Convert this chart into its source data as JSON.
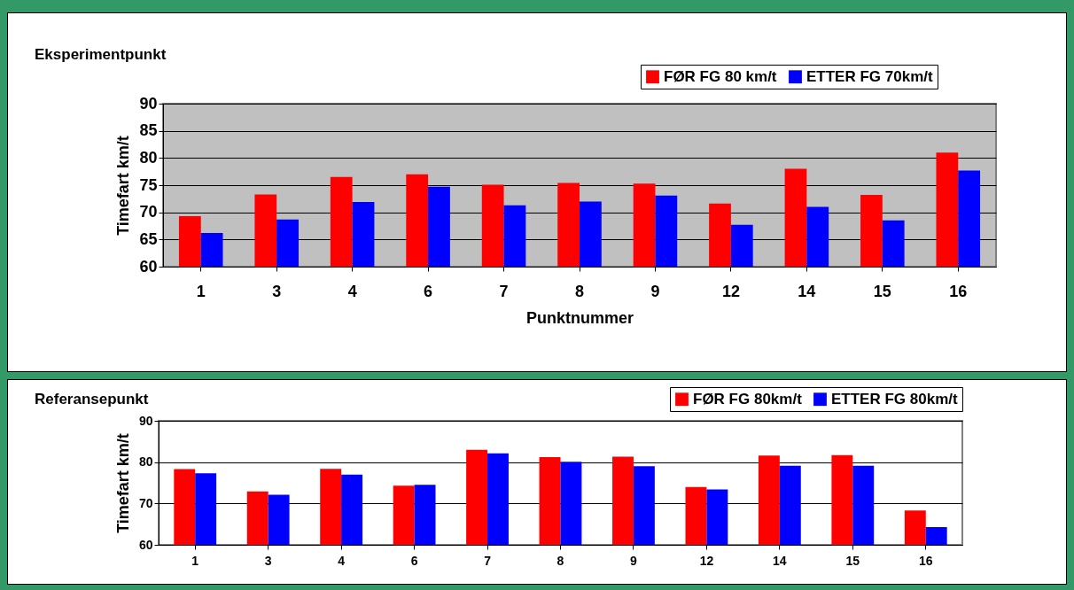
{
  "chart_data": [
    {
      "type": "bar",
      "title": "Eksperimentpunkt",
      "xlabel": "Punktnummer",
      "ylabel": "Timefart km/t",
      "categories": [
        "1",
        "3",
        "4",
        "6",
        "7",
        "8",
        "9",
        "12",
        "14",
        "15",
        "16"
      ],
      "series": [
        {
          "name": "FØR FG 80 km/t",
          "color": "#ff0000",
          "values": [
            69.3,
            73.3,
            76.5,
            77,
            75.1,
            75.4,
            75.3,
            71.6,
            78,
            73.2,
            81
          ]
        },
        {
          "name": "ETTER FG 70km/t",
          "color": "#0000ff",
          "values": [
            66.2,
            68.7,
            71.9,
            74.7,
            71.3,
            72,
            73.1,
            67.7,
            71,
            68.5,
            77.7
          ]
        }
      ],
      "ylim": [
        60,
        90
      ],
      "yticks": [
        60,
        65,
        70,
        75,
        80,
        85,
        90
      ],
      "grid": "y",
      "legend": "top right"
    },
    {
      "type": "bar",
      "title": "Referansepunkt",
      "ylabel": "Timefart km/t",
      "categories": [
        "1",
        "3",
        "4",
        "6",
        "7",
        "8",
        "9",
        "12",
        "14",
        "15",
        "16"
      ],
      "series": [
        {
          "name": "FØR FG 80km/t",
          "color": "#ff0000",
          "values": [
            78.3,
            72.9,
            78.4,
            74.3,
            83,
            81.2,
            81.3,
            74,
            81.6,
            81.7,
            68.3
          ]
        },
        {
          "name": "ETTER FG 80km/t",
          "color": "#0000ff",
          "values": [
            77.3,
            72.1,
            77,
            74.5,
            82.1,
            80.1,
            79,
            73.4,
            79.1,
            79.1,
            64.3
          ]
        }
      ],
      "ylim": [
        60,
        90
      ],
      "yticks": [
        60,
        70,
        80,
        90
      ],
      "grid": "y",
      "legend": "top right"
    }
  ]
}
